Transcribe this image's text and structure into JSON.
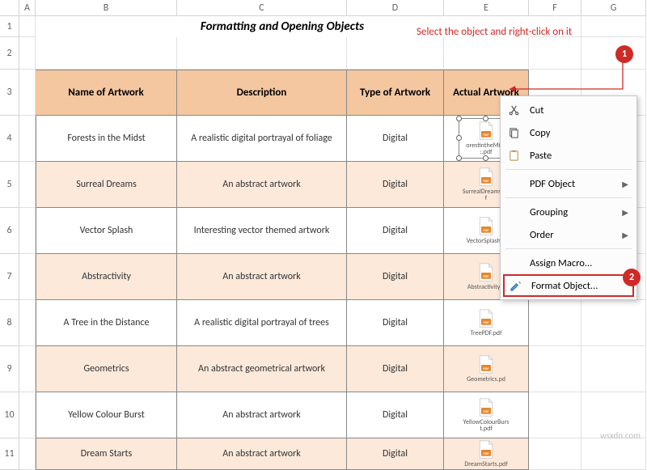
{
  "colors": {
    "header_bg": "#f4c7a1",
    "alt_bg": "#fce9da",
    "accent_red": "#cf2a27",
    "pdf_orange": "#e8862b",
    "border": "#888888"
  },
  "columns": [
    "A",
    "B",
    "C",
    "D",
    "E",
    "F",
    "G"
  ],
  "row_numbers": [
    "1",
    "2",
    "3",
    "4",
    "5",
    "6",
    "7",
    "8",
    "9",
    "10",
    "11"
  ],
  "title": "Formatting and Opening Objects",
  "headers": {
    "name": "Name of Artwork",
    "desc": "Description",
    "type": "Type of Artwork",
    "actual": "Actual Artwork"
  },
  "rows": [
    {
      "name": "Forests in the Midst",
      "desc": "A realistic digital portrayal of  foliage",
      "type": "Digital",
      "file": "orestintheMids\n:.pdf"
    },
    {
      "name": "Surreal Dreams",
      "desc": "An abstract artwork",
      "type": "Digital",
      "file": "SurrealDreams.pd\nf"
    },
    {
      "name": "Vector Splash",
      "desc": "Interesting vector themed artwork",
      "type": "Digital",
      "file": "VectorSplash.p"
    },
    {
      "name": "Abstractivity",
      "desc": "An abstract artwork",
      "type": "Digital",
      "file": "Abstractivity.p"
    },
    {
      "name": "A Tree in the Distance",
      "desc": "A realistic digital portrayal of trees",
      "type": "Digital",
      "file": "TreePDF.pdf"
    },
    {
      "name": "Geometrics",
      "desc": "An abstract geometrical artwork",
      "type": "Digital",
      "file": "Geometrics.pd"
    },
    {
      "name": "Yellow Colour Burst",
      "desc": "An abstract artwork",
      "type": "Digital",
      "file": "YellowColourBurs\nt.pdf"
    },
    {
      "name": "Dream Starts",
      "desc": "An abstract artwork",
      "type": "Digital",
      "file": "DreamStarts.pdf"
    }
  ],
  "context_menu": {
    "cut": "Cut",
    "copy": "Copy",
    "paste": "Paste",
    "pdf_object": "PDF Object",
    "grouping": "Grouping",
    "order": "Order",
    "assign_macro": "Assign Macro...",
    "format_object": "Format Object..."
  },
  "callout": "Select the object and right-click on it",
  "steps": {
    "one": "1",
    "two": "2"
  },
  "watermark": "wsxdn.com"
}
